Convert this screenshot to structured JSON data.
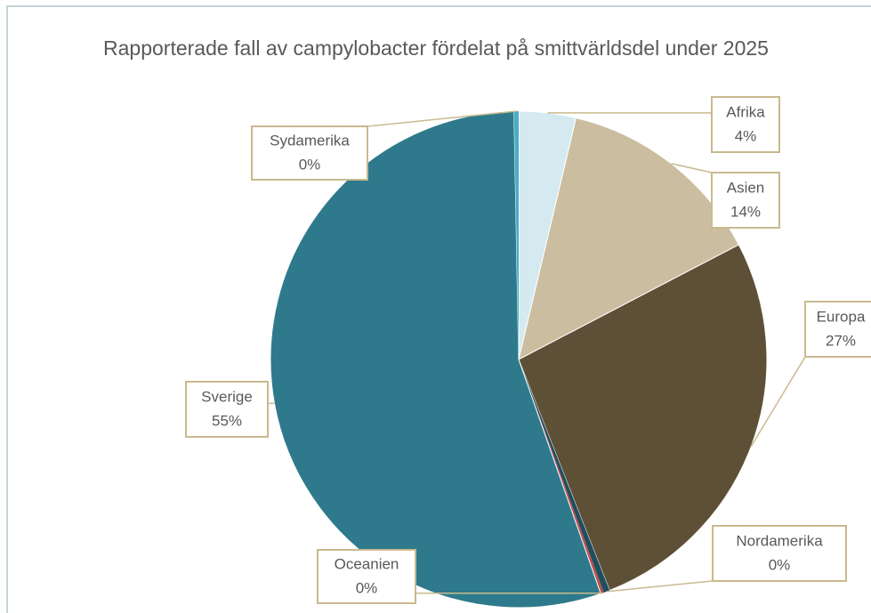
{
  "chart_data": {
    "type": "pie",
    "title": "Rapporterade fall av campylobacter fördelat på smittvärldsdel under 2025",
    "categories": [
      "Afrika",
      "Asien",
      "Europa",
      "Nordamerika",
      "Oceanien",
      "Sverige",
      "Sydamerika"
    ],
    "values": [
      3.7,
      13.6,
      26.6,
      0.4,
      0.2,
      54.9,
      0.3
    ],
    "value_labels": [
      "4%",
      "14%",
      "27%",
      "0%",
      "0%",
      "55%",
      "0%"
    ],
    "colors": [
      "#d4eaf0",
      "#cbbd9f",
      "#5e5037",
      "#1f4e5f",
      "#c0504d",
      "#2e7a8c",
      "#4bacc6"
    ]
  }
}
